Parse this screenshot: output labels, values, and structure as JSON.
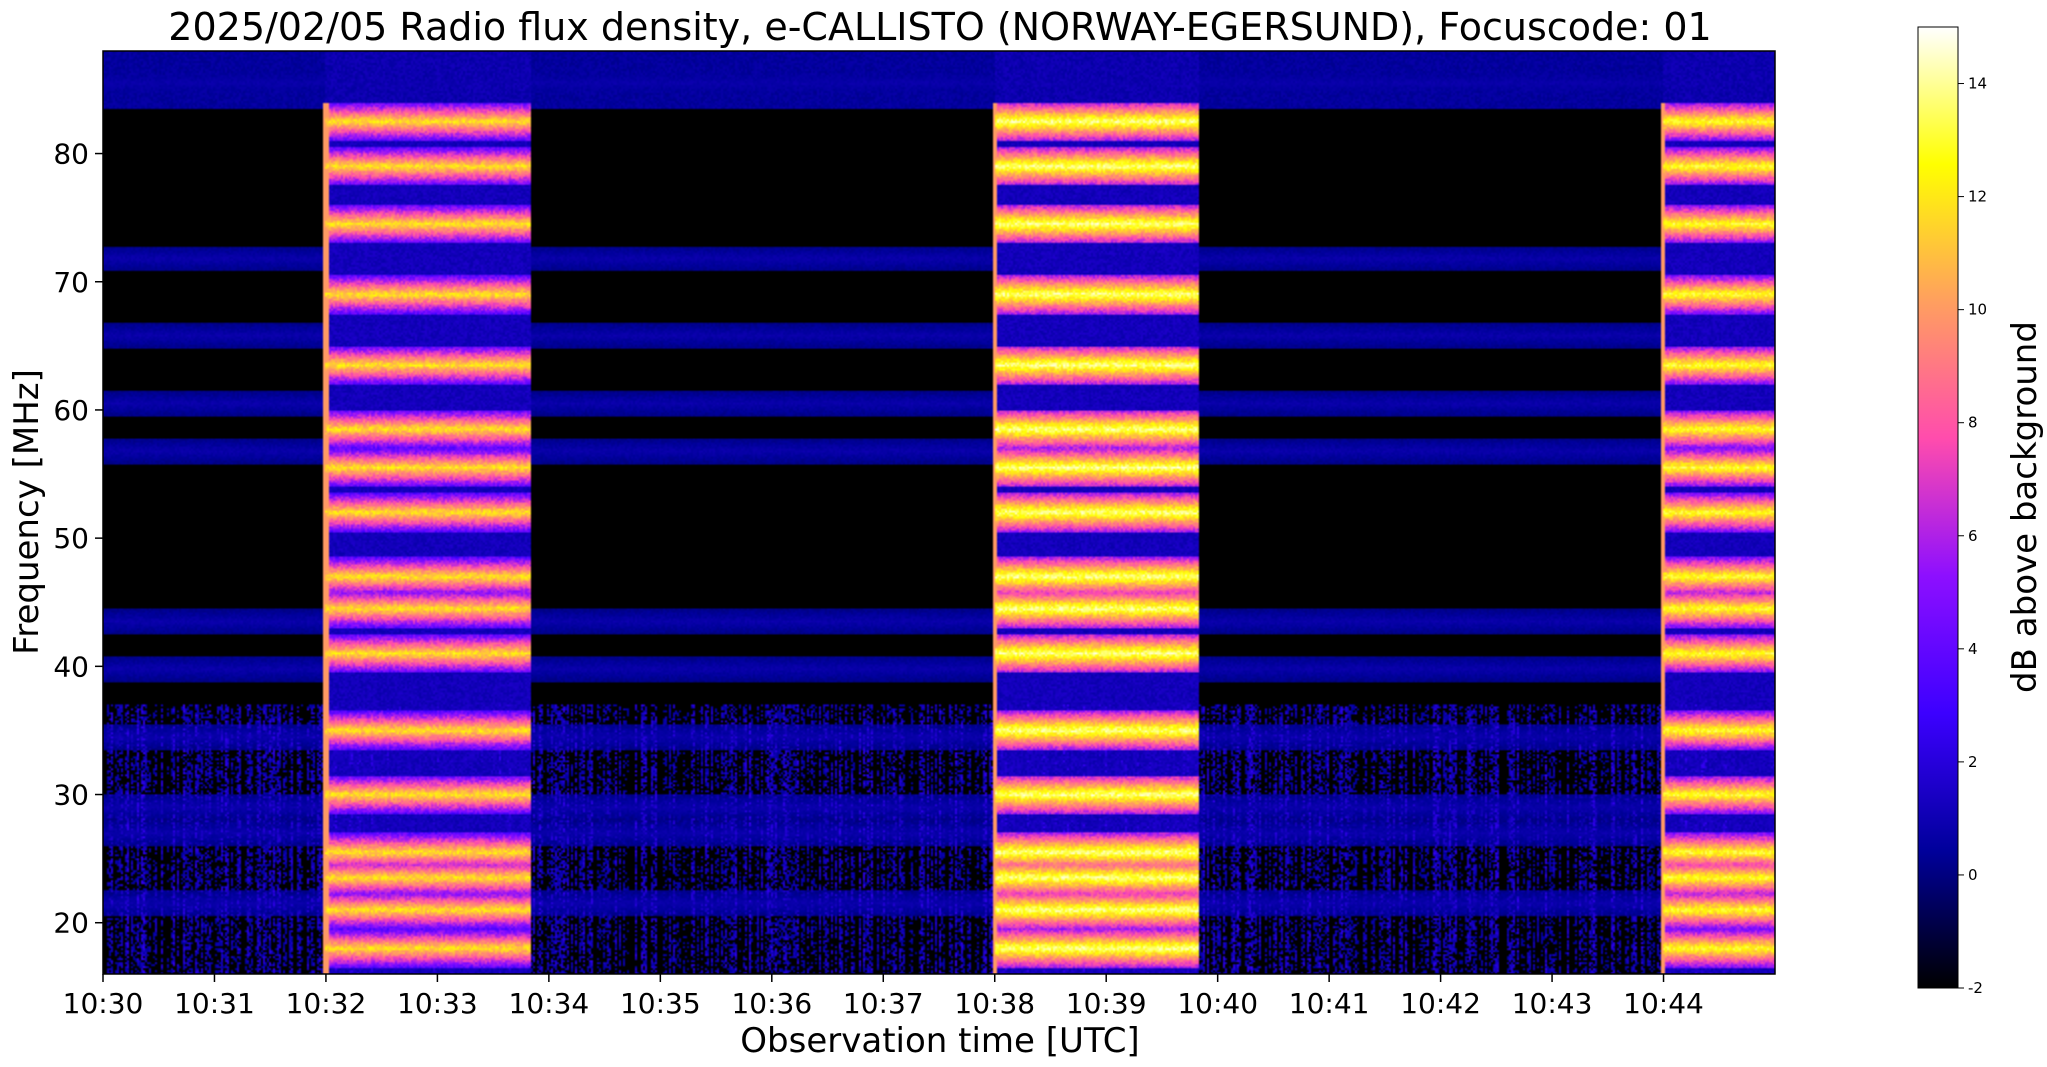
{
  "chart_data": {
    "type": "heatmap",
    "title": "2025/02/05  Radio flux density, e-CALLISTO (NORWAY-EGERSUND), Focuscode: 01",
    "xlabel": "Observation time [UTC]",
    "ylabel": "Frequency [MHz]",
    "x_ticks": [
      "10:30",
      "10:31",
      "10:32",
      "10:33",
      "10:34",
      "10:35",
      "10:36",
      "10:37",
      "10:38",
      "10:39",
      "10:40",
      "10:41",
      "10:42",
      "10:43",
      "10:44"
    ],
    "xlim_minutes": [
      0,
      15
    ],
    "y_ticks": [
      20,
      30,
      40,
      50,
      60,
      70,
      80
    ],
    "ylim": [
      16,
      88
    ],
    "colorbar": {
      "label": "dB above background",
      "ticks": [
        -2,
        0,
        2,
        4,
        6,
        8,
        10,
        12,
        14
      ],
      "range": [
        -2,
        15
      ],
      "colormap": "gnuplot2",
      "stops": [
        "#000000",
        "#00009b",
        "#3c00ff",
        "#8d0fff",
        "#ff4cad",
        "#ff9f5f",
        "#ffff00",
        "#ffffff"
      ]
    },
    "bursts": [
      {
        "start": "10:32:00",
        "end": "10:33:50",
        "peak_db": 13
      },
      {
        "start": "10:38:00",
        "end": "10:39:50",
        "peak_db": 15
      },
      {
        "start": "10:44:00",
        "end": "10:45:00",
        "peak_db": 14
      }
    ],
    "emission_bands_mhz": [
      18,
      21,
      23.5,
      25.5,
      30,
      35,
      41,
      44.5,
      47,
      52,
      55.5,
      58.5,
      63.5,
      69,
      74.5,
      79,
      82.5
    ],
    "interference_bands_mhz": [
      21.5,
      27,
      29,
      34.5,
      39.8,
      43.5,
      56.8,
      60.5,
      65.8,
      71.8,
      85.5
    ]
  }
}
